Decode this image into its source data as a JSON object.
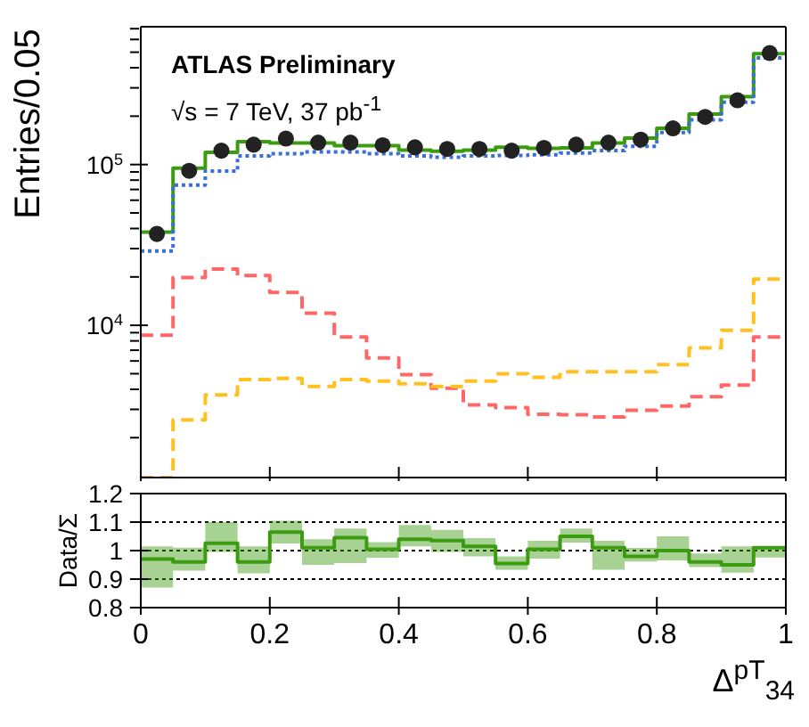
{
  "chart_data": [
    {
      "type": "histogram",
      "ylabel": "Entries/0.05",
      "annotations": [
        "ATLAS Preliminary",
        "√s = 7 TeV, 37 pb$^{-1}$"
      ],
      "bins": [
        0,
        0.05,
        0.1,
        0.15,
        0.2,
        0.25,
        0.3,
        0.35,
        0.4,
        0.45,
        0.5,
        0.55,
        0.6,
        0.65,
        0.7,
        0.75,
        0.8,
        0.85,
        0.9,
        0.95,
        1
      ],
      "series": [
        {
          "color": "#3c9c10",
          "line_style": "solid",
          "values": [
            38000,
            95000,
            119000,
            139000,
            136000,
            136000,
            131000,
            131000,
            123000,
            121000,
            123000,
            128000,
            126000,
            127000,
            136000,
            146000,
            168000,
            206000,
            264000,
            489000
          ]
        },
        {
          "color": "#3a6fd8",
          "line_style": "dotted",
          "values": [
            29000,
            74600,
            91000,
            113000,
            117000,
            120000,
            120000,
            117000,
            113000,
            111000,
            113000,
            114000,
            115000,
            118000,
            122000,
            130000,
            158000,
            190000,
            244000,
            460000
          ]
        },
        {
          "color": "#ff6666",
          "line_style": "dashed",
          "values": [
            8670,
            19800,
            22400,
            20400,
            16000,
            11900,
            8470,
            6270,
            4940,
            4060,
            3200,
            3080,
            2800,
            2780,
            2690,
            2960,
            3150,
            3600,
            4250,
            8470
          ]
        },
        {
          "color": "#ffc020",
          "line_style": "dashed",
          "values": [
            1130,
            2580,
            3690,
            4600,
            4680,
            4160,
            4600,
            4500,
            4330,
            4160,
            4500,
            4990,
            4750,
            5140,
            5140,
            5140,
            5700,
            7230,
            9310,
            19400
          ]
        },
        {
          "type": "scatter",
          "color": "#222222",
          "marker": "circle",
          "x": [
            0.025,
            0.075,
            0.125,
            0.175,
            0.225,
            0.275,
            0.325,
            0.375,
            0.425,
            0.475,
            0.525,
            0.575,
            0.625,
            0.675,
            0.725,
            0.775,
            0.825,
            0.875,
            0.925,
            0.975
          ],
          "values": [
            37000,
            91500,
            122000,
            133000,
            145000,
            137000,
            137000,
            132000,
            128000,
            125000,
            125000,
            122000,
            127000,
            133000,
            137000,
            143000,
            168000,
            198000,
            251000,
            494000
          ]
        }
      ],
      "log": "y",
      "xlim": [
        0,
        1
      ],
      "xticks": [
        0,
        0.2,
        0.4,
        0.6,
        0.8,
        1
      ],
      "ylim": [
        1130,
        720000
      ],
      "yticks": [
        {
          "value": 2000,
          "label": null
        },
        {
          "value": 3000,
          "label": null
        },
        {
          "value": 4000,
          "label": null
        },
        {
          "value": 5000,
          "label": null
        },
        {
          "value": 6000,
          "label": null
        },
        {
          "value": 7000,
          "label": null
        },
        {
          "value": 8000,
          "label": null
        },
        {
          "value": 9000,
          "label": null
        },
        {
          "value": 10000,
          "label": "10$^{4}$"
        },
        {
          "value": 20000,
          "label": null
        },
        {
          "value": 30000,
          "label": null
        },
        {
          "value": 40000,
          "label": null
        },
        {
          "value": 50000,
          "label": null
        },
        {
          "value": 60000,
          "label": null
        },
        {
          "value": 70000,
          "label": null
        },
        {
          "value": 80000,
          "label": null
        },
        {
          "value": 90000,
          "label": null
        },
        {
          "value": 100000,
          "label": "10$^{5}$"
        },
        {
          "value": 200000,
          "label": null
        },
        {
          "value": 300000,
          "label": null
        },
        {
          "value": 400000,
          "label": null
        },
        {
          "value": 500000,
          "label": null
        },
        {
          "value": 600000,
          "label": null
        },
        {
          "value": 700000,
          "label": null
        }
      ],
      "tick_labels": "y"
    },
    {
      "type": "step",
      "ylabel": "Data/Σ",
      "xlabel": "Δ$^{pT}$$_{34}$",
      "series": [
        {
          "color": "#3c9c10",
          "line_style": "solid",
          "x": [
            0,
            0.05,
            0.1,
            0.15,
            0.2,
            0.25,
            0.3,
            0.35,
            0.4,
            0.45,
            0.5,
            0.55,
            0.6,
            0.65,
            0.7,
            0.75,
            0.8,
            0.85,
            0.9,
            0.95,
            1
          ],
          "values": [
            0.97,
            0.96,
            1.026,
            0.96,
            1.065,
            1.01,
            1.045,
            1.005,
            1.04,
            1.035,
            1.015,
            0.955,
            1.005,
            1.05,
            1.01,
            0.98,
            1.0,
            0.96,
            0.95,
            1.01,
            1.01
          ],
          "lower": [
            0.87,
            0.93,
            0.995,
            0.92,
            1.025,
            0.95,
            0.956,
            0.975,
            1.015,
            0.995,
            0.98,
            0.933,
            0.972,
            1.028,
            0.933,
            0.962,
            0.966,
            0.942,
            0.923,
            0.976,
            0.976
          ],
          "upper": [
            1.015,
            1.01,
            1.1,
            1.015,
            1.105,
            1.04,
            1.077,
            1.03,
            1.09,
            1.073,
            1.044,
            0.98,
            1.034,
            1.077,
            1.034,
            1.009,
            1.05,
            0.99,
            1.015,
            1.015,
            1.015
          ]
        }
      ],
      "xlim": [
        0,
        1
      ],
      "xticks": [
        0,
        0.2,
        0.4,
        0.6,
        0.8,
        1
      ],
      "ylim": [
        0.8,
        1.2
      ],
      "yticks": [
        0.8,
        0.9,
        1,
        1.1,
        1.2
      ],
      "grid": "y"
    }
  ]
}
